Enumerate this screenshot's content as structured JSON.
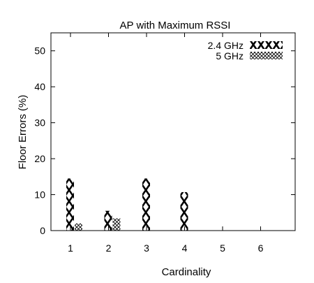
{
  "chart_data": {
    "type": "bar",
    "title": "AP with Maximum RSSI",
    "xlabel": "Cardinality",
    "ylabel": "Floor Errors (%)",
    "categories": [
      "1",
      "2",
      "3",
      "4",
      "5",
      "6"
    ],
    "ylim": [
      0,
      55
    ],
    "yticks": [
      "0",
      "10",
      "20",
      "30",
      "40",
      "50"
    ],
    "grid": false,
    "legend_position": "top-right",
    "series": [
      {
        "name": "2.4 GHz",
        "pattern": "big-cross-hatch",
        "values": [
          14.5,
          5.5,
          14.5,
          10.7,
          0,
          0
        ]
      },
      {
        "name": "5 GHz",
        "pattern": "fine-cross-hatch",
        "values": [
          2.0,
          3.4,
          0,
          0,
          0,
          0
        ]
      }
    ],
    "colors": {
      "pattern": "#000000",
      "background": "#ffffff"
    }
  }
}
